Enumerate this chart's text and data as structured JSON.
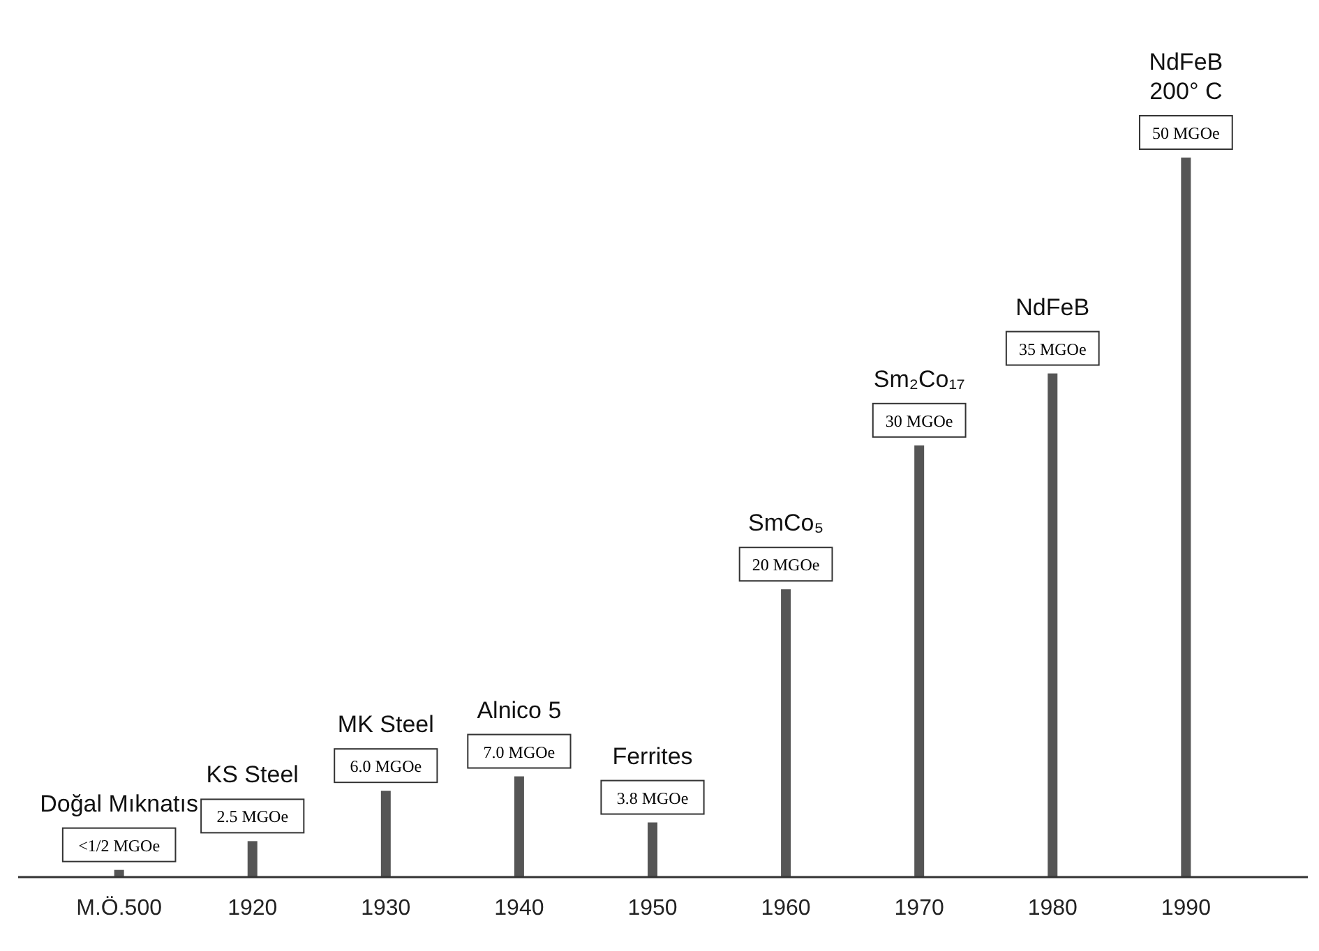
{
  "chart_data": {
    "type": "bar",
    "color": "#555555",
    "categories": [
      "M.Ö.500",
      "1920",
      "1930",
      "1940",
      "1950",
      "1960",
      "1970",
      "1980",
      "1990"
    ],
    "values": [
      0.5,
      2.5,
      6.0,
      7.0,
      3.8,
      20,
      30,
      35,
      50
    ],
    "value_labels": [
      "<1/2 MGOe",
      "2.5 MGOe",
      "6.0 MGOe",
      "7.0 MGOe",
      "3.8 MGOe",
      "20 MGOe",
      "30 MGOe",
      "35 MGOe",
      "50 MGOe"
    ],
    "annotations": [
      "Doğal  Mıknatıs",
      "KS Steel",
      "MK Steel",
      "Alnico 5",
      "Ferrites",
      "SmCo₅",
      "Sm₂Co₁₇",
      "NdFeB",
      "NdFeB\n200° C"
    ]
  }
}
